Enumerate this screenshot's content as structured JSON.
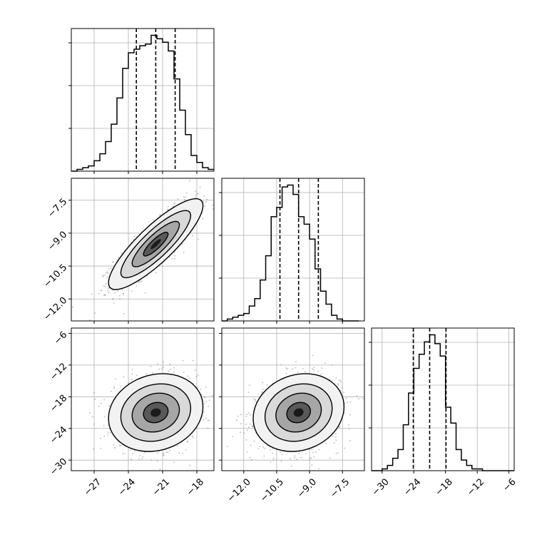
{
  "chart_data": {
    "type": "corner",
    "grid": true,
    "colors": {
      "line": "#000000",
      "grid": "#b0b0b0",
      "scatter": "#7f7f7f",
      "quantile": "#000000"
    },
    "parameters": [
      {
        "range": [
          -29,
          -16.5
        ],
        "ticks": [
          -27,
          -24,
          -21,
          -18
        ],
        "tick_labels": [
          "−27",
          "−24",
          "−21",
          "−18"
        ],
        "quantiles": [
          -23.3,
          -21.6,
          -19.9
        ]
      },
      {
        "range": [
          -13.0,
          -6.5
        ],
        "ticks": [
          -12.0,
          -10.5,
          -9.0,
          -7.5
        ],
        "tick_labels": [
          "−12.0",
          "−10.5",
          "−9.0",
          "−7.5"
        ],
        "quantiles": [
          -10.35,
          -9.5,
          -8.6
        ]
      },
      {
        "range": [
          -32,
          -5
        ],
        "ticks": [
          -30,
          -24,
          -18,
          -12,
          -6
        ],
        "tick_labels": [
          "−30",
          "−24",
          "−18",
          "−12",
          "−6"
        ],
        "quantiles": [
          -24.1,
          -21.0,
          -17.9
        ]
      }
    ],
    "histograms": [
      {
        "param": 0,
        "bins": [
          -29.0,
          -28.5,
          -28.0,
          -27.5,
          -27.0,
          -26.5,
          -26.0,
          -25.5,
          -25.0,
          -24.5,
          -24.0,
          -23.5,
          -23.0,
          -22.5,
          -22.0,
          -21.5,
          -21.0,
          -20.5,
          -20.0,
          -19.5,
          -19.0,
          -18.5,
          -18.0,
          -17.5,
          -17.0,
          -16.5
        ],
        "counts": [
          0,
          1,
          2,
          3,
          6,
          10,
          17,
          27,
          42,
          59,
          68,
          70,
          72,
          73,
          78,
          76,
          74,
          69,
          53,
          35,
          21,
          9,
          5,
          2,
          1
        ]
      },
      {
        "param": 1,
        "bins": [
          -13.0,
          -12.75,
          -12.5,
          -12.25,
          -12.0,
          -11.75,
          -11.5,
          -11.25,
          -11.0,
          -10.75,
          -10.5,
          -10.25,
          -10.0,
          -9.75,
          -9.5,
          -9.25,
          -9.0,
          -8.75,
          -8.5,
          -8.25,
          -8.0,
          -7.75,
          -7.5,
          -7.25,
          -7.0,
          -6.75
        ],
        "counts": [
          0,
          1,
          2,
          3,
          4,
          8,
          12,
          22,
          35,
          56,
          61,
          72,
          73,
          68,
          56,
          52,
          44,
          28,
          16,
          9,
          3,
          1,
          0,
          0,
          0
        ]
      },
      {
        "param": 2,
        "bins": [
          -32,
          -31,
          -30,
          -29,
          -28,
          -27,
          -26,
          -25,
          -24,
          -23,
          -22,
          -21,
          -20,
          -19,
          -18,
          -17,
          -16,
          -15,
          -14,
          -13,
          -12,
          -11,
          -10,
          -9,
          -8,
          -7,
          -6,
          -5
        ],
        "counts": [
          0,
          0,
          1,
          3,
          7,
          12,
          26,
          44,
          58,
          66,
          73,
          77,
          72,
          65,
          36,
          27,
          12,
          6,
          3,
          1,
          1,
          0,
          0,
          0,
          0,
          0,
          0
        ]
      }
    ],
    "joint_panels": [
      {
        "x_param": 0,
        "y_param": 1,
        "center": [
          -21.6,
          -9.5
        ],
        "sd": [
          1.8,
          0.9
        ],
        "correlation": 0.85
      },
      {
        "x_param": 0,
        "y_param": 2,
        "center": [
          -21.6,
          -21.0
        ],
        "sd": [
          1.8,
          3.2
        ],
        "correlation": 0.15
      },
      {
        "x_param": 1,
        "y_param": 2,
        "center": [
          -9.5,
          -21.0
        ],
        "sd": [
          0.9,
          3.2
        ],
        "correlation": 0.15
      }
    ]
  }
}
